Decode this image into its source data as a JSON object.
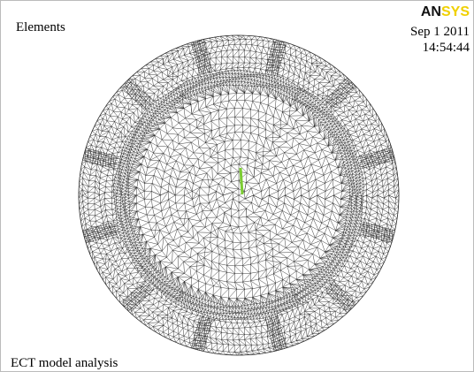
{
  "title": "Elements",
  "logo": {
    "dark": "AN",
    "light": "SYS"
  },
  "date": "Sep 1 2011",
  "time": "14:54:44",
  "caption": "ECT model analysis"
}
